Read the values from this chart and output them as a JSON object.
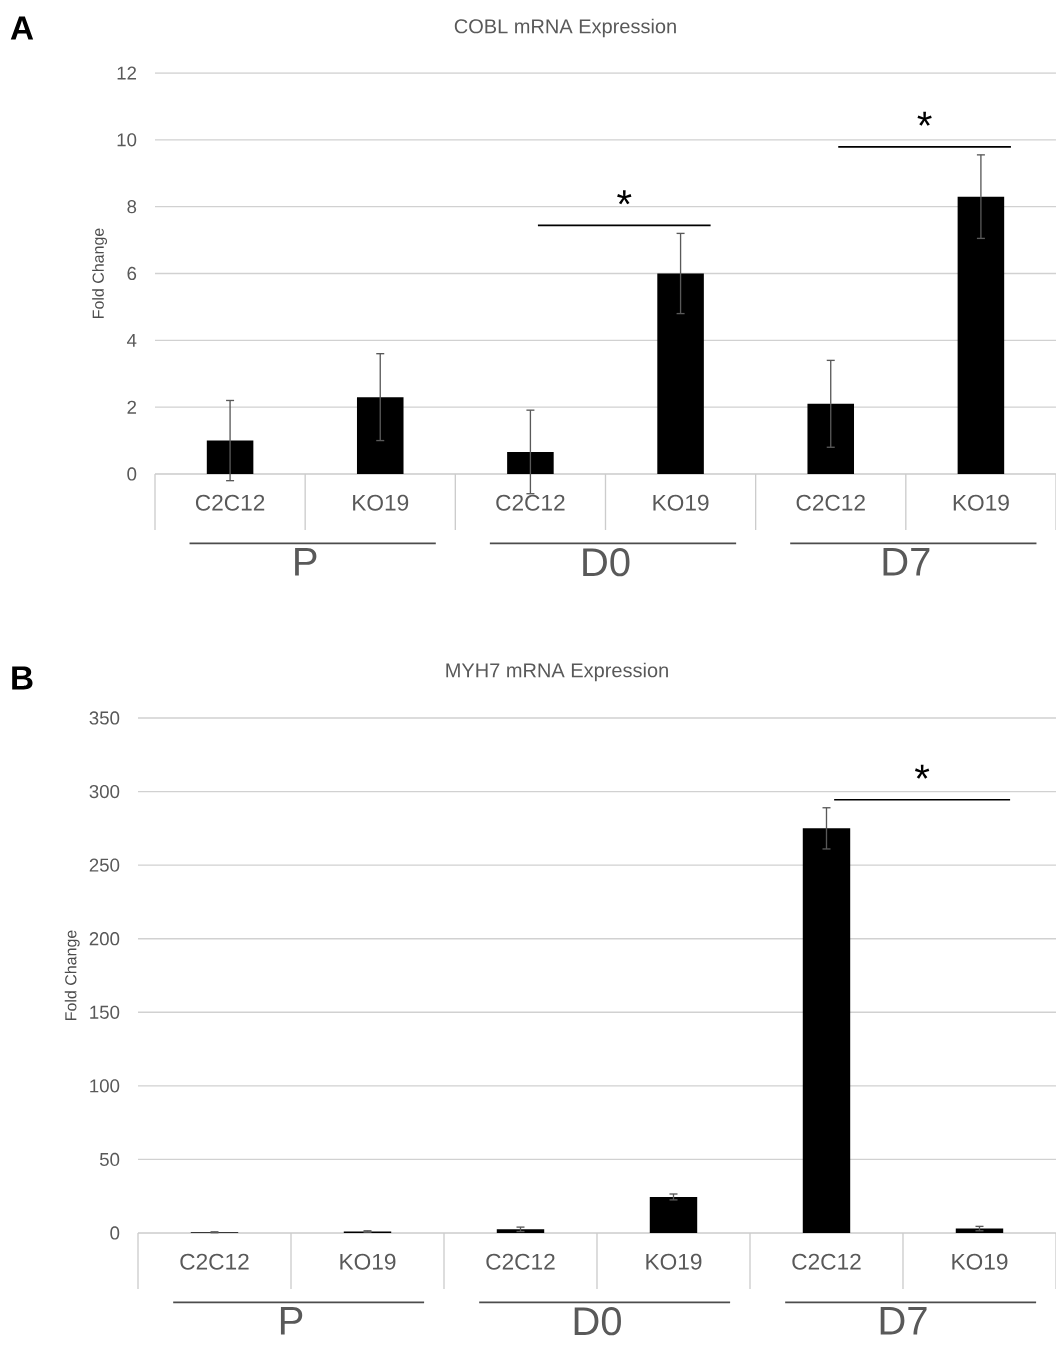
{
  "chart_data": [
    {
      "type": "bar",
      "title": "COBL mRNA Expression",
      "ylabel": "Fold Change",
      "categories": [
        "C2C12",
        "KO19",
        "C2C12",
        "KO19",
        "C2C12",
        "KO19"
      ],
      "values": [
        1.0,
        2.3,
        0.66,
        6.0,
        2.1,
        8.3
      ],
      "errors": [
        1.2,
        1.3,
        1.25,
        1.2,
        1.3,
        1.25
      ],
      "color": "#000000",
      "ylim": [
        0,
        12
      ],
      "yticks": [
        0,
        2,
        4,
        6,
        8,
        10,
        12
      ],
      "grid": "y",
      "annotations": [
        "A",
        "*",
        "*",
        "P",
        "D0",
        "D7"
      ]
    },
    {
      "type": "bar",
      "title": "MYH7 mRNA Expression",
      "ylabel": "Fold Change",
      "categories": [
        "C2C12",
        "KO19",
        "C2C12",
        "KO19",
        "C2C12",
        "KO19"
      ],
      "values": [
        0.5,
        1,
        2.5,
        24.5,
        275,
        3
      ],
      "errors": [
        0.3,
        0.5,
        1.5,
        2,
        14,
        1.5
      ],
      "color": "#000000",
      "ylim": [
        0,
        350
      ],
      "yticks": [
        0,
        50,
        100,
        150,
        200,
        250,
        300,
        350
      ],
      "grid": "y",
      "annotations": [
        "B",
        "*",
        "P",
        "D0",
        "D7"
      ]
    }
  ]
}
